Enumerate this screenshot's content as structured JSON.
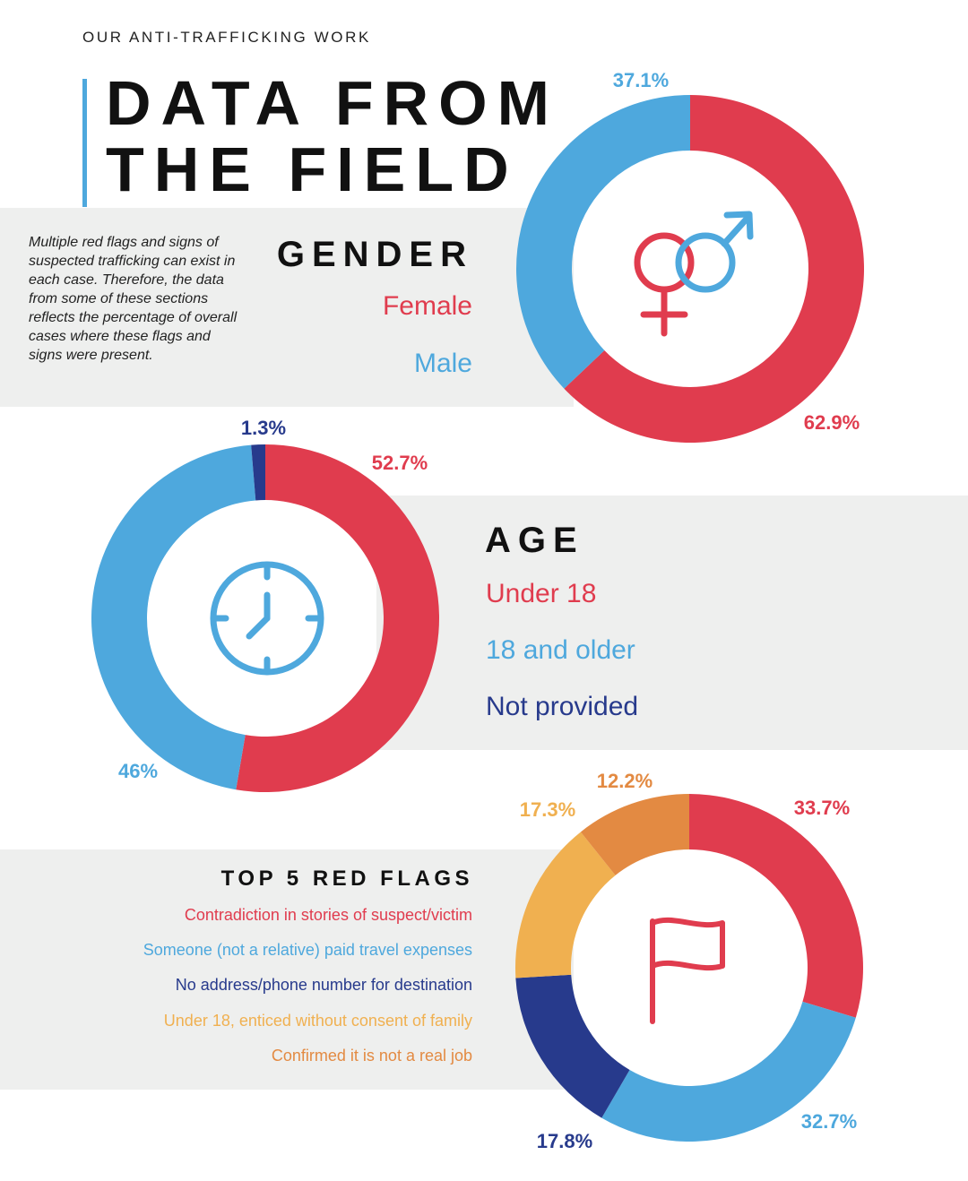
{
  "header": {
    "kicker": "OUR ANTI-TRAFFICKING WORK",
    "title_line1": "DATA FROM",
    "title_line2": "THE FIELD"
  },
  "note": "Multiple red flags and signs of suspected trafficking can exist in each case. Therefore, the data from some of these sections reflects the percentage of overall cases where these flags and signs were present.",
  "colors": {
    "red": "#e03c4e",
    "light_blue": "#4ea8dd",
    "navy": "#273a8c",
    "yellow": "#f0b050",
    "orange": "#e38a42",
    "band": "#eeefee"
  },
  "chart_data": [
    {
      "type": "pie",
      "variant": "donut",
      "title": "GENDER",
      "center_icon": "gender-symbols-icon",
      "categories": [
        "Female",
        "Male"
      ],
      "values": [
        62.9,
        37.1
      ],
      "labels": [
        "62.9%",
        "37.1%"
      ],
      "colors": [
        "#e03c4e",
        "#4ea8dd"
      ]
    },
    {
      "type": "pie",
      "variant": "donut",
      "title": "AGE",
      "center_icon": "clock-icon",
      "categories": [
        "Under 18",
        "18 and older",
        "Not provided"
      ],
      "values": [
        52.7,
        46,
        1.3
      ],
      "labels": [
        "52.7%",
        "46%",
        "1.3%"
      ],
      "colors": [
        "#e03c4e",
        "#4ea8dd",
        "#273a8c"
      ]
    },
    {
      "type": "pie",
      "variant": "donut",
      "title": "TOP 5 RED FLAGS",
      "center_icon": "flag-icon",
      "categories": [
        "Contradiction in stories of suspect/victim",
        "Someone (not a relative) paid travel expenses",
        "No address/phone number for destination",
        "Under 18, enticed without consent of family",
        "Confirmed it is not a real job"
      ],
      "values": [
        33.7,
        32.7,
        17.8,
        17.3,
        12.2
      ],
      "labels": [
        "33.7%",
        "32.7%",
        "17.8%",
        "17.3%",
        "12.2%"
      ],
      "colors": [
        "#e03c4e",
        "#4ea8dd",
        "#273a8c",
        "#f0b050",
        "#e38a42"
      ]
    }
  ]
}
